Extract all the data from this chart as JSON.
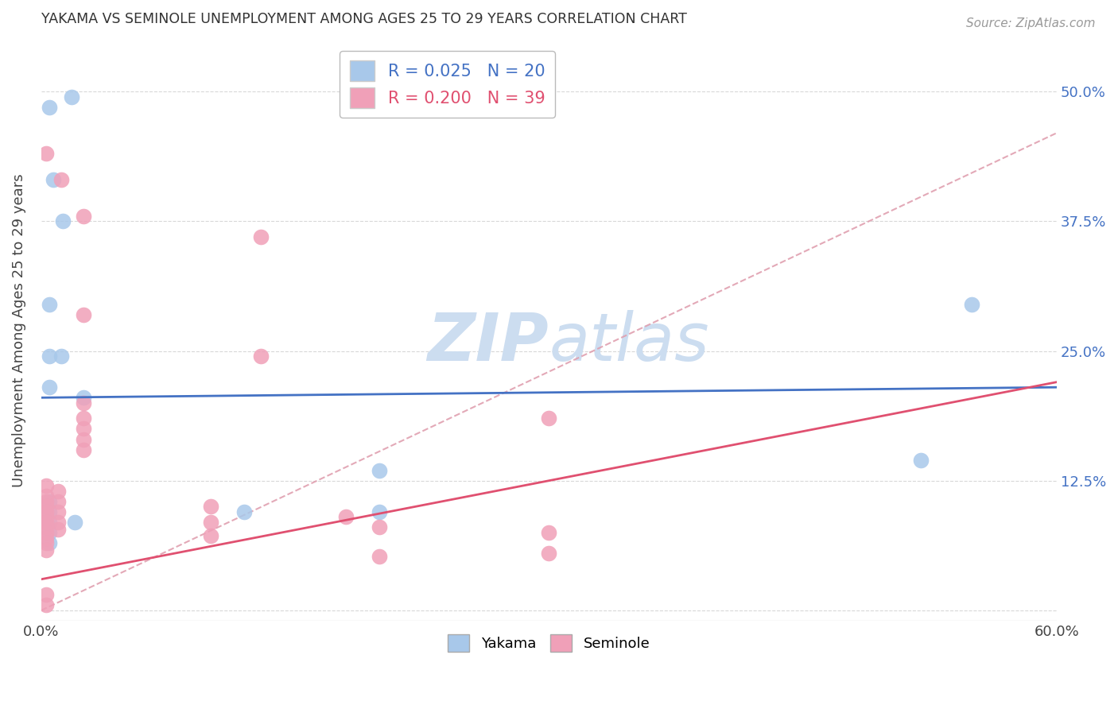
{
  "title": "YAKAMA VS SEMINOLE UNEMPLOYMENT AMONG AGES 25 TO 29 YEARS CORRELATION CHART",
  "source": "Source: ZipAtlas.com",
  "ylabel": "Unemployment Among Ages 25 to 29 years",
  "xlim": [
    0.0,
    0.6
  ],
  "ylim": [
    -0.01,
    0.55
  ],
  "yakama_R": 0.025,
  "yakama_N": 20,
  "seminole_R": 0.2,
  "seminole_N": 39,
  "yakama_color": "#a8c8ea",
  "seminole_color": "#f0a0b8",
  "trendline_yakama_color": "#4472c4",
  "trendline_seminole_color": "#e05070",
  "trendline_dashed_color": "#e0a0b0",
  "watermark_color": "#ccddf0",
  "background_color": "#ffffff",
  "grid_color": "#d8d8d8",
  "yakama_trendline": [
    [
      0.0,
      0.205
    ],
    [
      0.6,
      0.215
    ]
  ],
  "seminole_trendline": [
    [
      0.0,
      0.03
    ],
    [
      0.6,
      0.22
    ]
  ],
  "dashed_line": [
    [
      0.0,
      0.0
    ],
    [
      0.6,
      0.46
    ]
  ],
  "yakama_points": [
    [
      0.005,
      0.485
    ],
    [
      0.018,
      0.495
    ],
    [
      0.007,
      0.415
    ],
    [
      0.013,
      0.375
    ],
    [
      0.005,
      0.295
    ],
    [
      0.012,
      0.245
    ],
    [
      0.005,
      0.245
    ],
    [
      0.005,
      0.215
    ],
    [
      0.025,
      0.205
    ],
    [
      0.005,
      0.105
    ],
    [
      0.005,
      0.095
    ],
    [
      0.005,
      0.085
    ],
    [
      0.02,
      0.085
    ],
    [
      0.005,
      0.075
    ],
    [
      0.005,
      0.065
    ],
    [
      0.12,
      0.095
    ],
    [
      0.2,
      0.135
    ],
    [
      0.2,
      0.095
    ],
    [
      0.52,
      0.145
    ],
    [
      0.55,
      0.295
    ]
  ],
  "seminole_points": [
    [
      0.003,
      0.44
    ],
    [
      0.012,
      0.415
    ],
    [
      0.025,
      0.38
    ],
    [
      0.025,
      0.285
    ],
    [
      0.13,
      0.36
    ],
    [
      0.13,
      0.245
    ],
    [
      0.025,
      0.2
    ],
    [
      0.025,
      0.185
    ],
    [
      0.025,
      0.175
    ],
    [
      0.025,
      0.165
    ],
    [
      0.025,
      0.155
    ],
    [
      0.003,
      0.12
    ],
    [
      0.003,
      0.11
    ],
    [
      0.003,
      0.105
    ],
    [
      0.003,
      0.1
    ],
    [
      0.003,
      0.095
    ],
    [
      0.003,
      0.09
    ],
    [
      0.003,
      0.085
    ],
    [
      0.003,
      0.08
    ],
    [
      0.003,
      0.075
    ],
    [
      0.003,
      0.07
    ],
    [
      0.003,
      0.065
    ],
    [
      0.003,
      0.058
    ],
    [
      0.01,
      0.115
    ],
    [
      0.01,
      0.105
    ],
    [
      0.01,
      0.095
    ],
    [
      0.01,
      0.085
    ],
    [
      0.01,
      0.078
    ],
    [
      0.1,
      0.1
    ],
    [
      0.1,
      0.085
    ],
    [
      0.1,
      0.072
    ],
    [
      0.18,
      0.09
    ],
    [
      0.2,
      0.08
    ],
    [
      0.2,
      0.052
    ],
    [
      0.3,
      0.075
    ],
    [
      0.3,
      0.055
    ],
    [
      0.003,
      0.015
    ],
    [
      0.003,
      0.005
    ],
    [
      0.3,
      0.185
    ]
  ]
}
